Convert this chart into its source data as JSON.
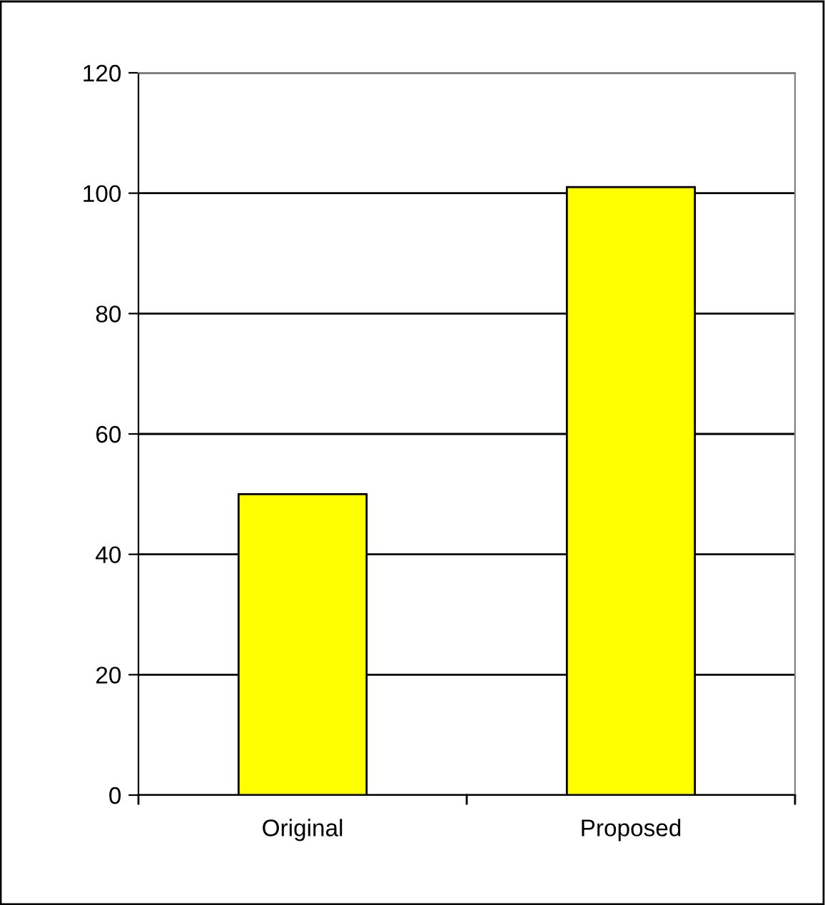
{
  "chart_data": {
    "type": "bar",
    "categories": [
      "Original",
      "Proposed"
    ],
    "values": [
      50,
      101
    ],
    "color": "#ffff00",
    "ylim": [
      0,
      120
    ],
    "yticks": [
      0,
      20,
      40,
      60,
      80,
      100,
      120
    ],
    "grid": "y"
  }
}
